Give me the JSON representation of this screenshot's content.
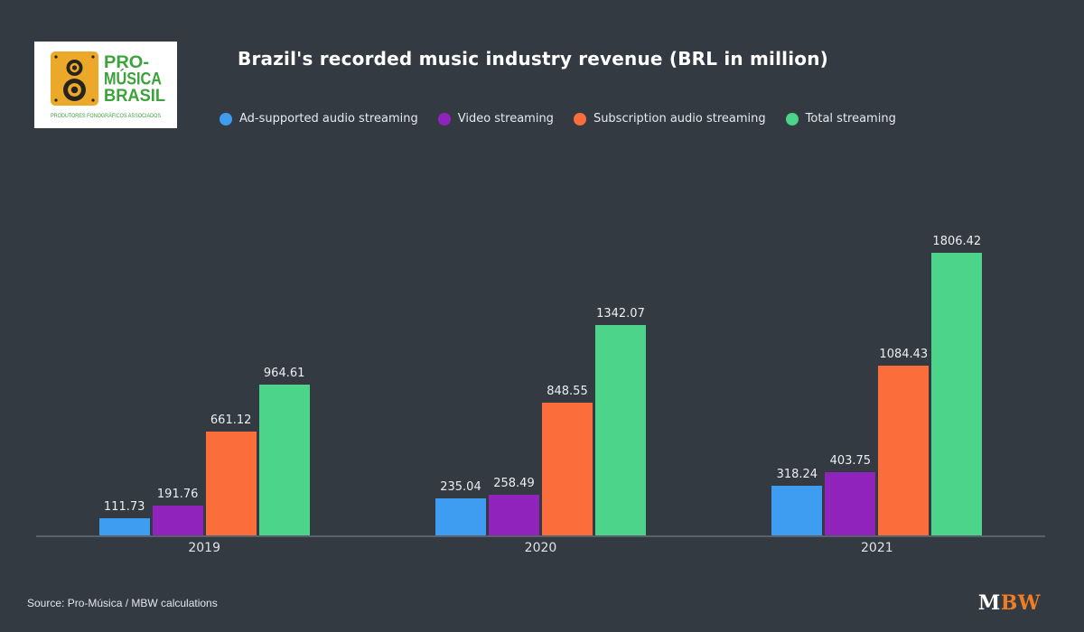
{
  "header": {
    "title": "Brazil's recorded music industry revenue (BRL in million)",
    "logo": {
      "line1": "PRO-",
      "line2": "MÚSICA",
      "line3": "BRASIL",
      "subtext": "PRODUTORES FONOGRÁFICOS ASSOCIADOS",
      "colors": {
        "box": "#FFFFFF",
        "speaker": "#ECA929",
        "speaker_dark": "#26241F",
        "text_green": "#3BA23C"
      }
    }
  },
  "chart_data": {
    "type": "bar",
    "title": "Brazil's recorded music industry revenue (BRL in million)",
    "categories": [
      "2019",
      "2020",
      "2021"
    ],
    "series": [
      {
        "name": "Ad-supported audio streaming",
        "color": "#3E9DF0",
        "values": [
          111.73,
          235.04,
          318.24
        ]
      },
      {
        "name": "Video streaming",
        "color": "#8F23BB",
        "values": [
          191.76,
          258.49,
          403.75
        ]
      },
      {
        "name": "Subscription audio streaming",
        "color": "#FB6D3B",
        "values": [
          661.12,
          848.55,
          1084.43
        ]
      },
      {
        "name": "Total streaming",
        "color": "#4CD48A",
        "values": [
          964.61,
          1342.07,
          1806.42
        ]
      }
    ],
    "ylim": [
      0,
      1900
    ],
    "grid": false,
    "value_labels": true,
    "value_decimals": 2,
    "legend_position": "top",
    "background": "#343A42",
    "axis_line_color": "#59616B"
  },
  "footer": {
    "source": "Source: Pro-Música / MBW calculations",
    "brand": {
      "m": "M",
      "bw": "BW",
      "bw_color": "#EF7D23"
    }
  }
}
